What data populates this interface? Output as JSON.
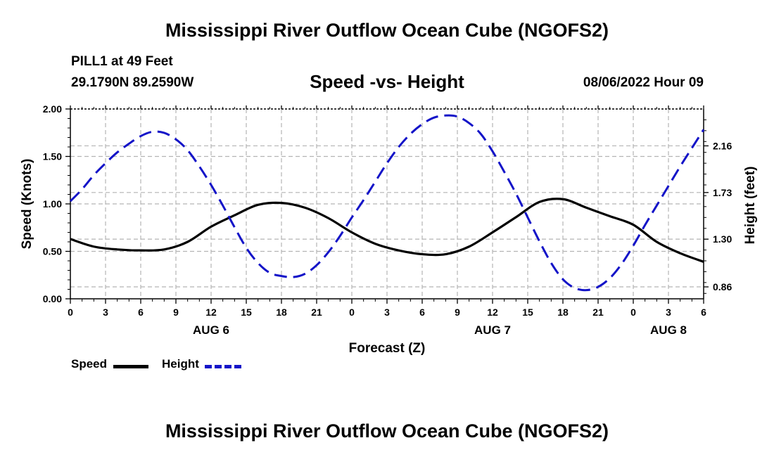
{
  "header": {
    "title": "Mississippi River Outflow Ocean Cube (NGOFS2)",
    "station": "PILL1 at 49 Feet",
    "coordinates": "29.1790N  89.2590W",
    "subtitle": "Speed -vs- Height",
    "datetime": "08/06/2022 Hour 09"
  },
  "footer": {
    "title": "Mississippi River Outflow Ocean Cube (NGOFS2)"
  },
  "legend": {
    "speed_label": "Speed",
    "height_label": "Height"
  },
  "colors": {
    "speed": "#000000",
    "height": "#1414c8",
    "grid": "#b4b4b4"
  },
  "chart_data": {
    "type": "line",
    "title": "Speed -vs- Height",
    "xlabel": "Forecast (Z)",
    "ylabel": "Speed (Knots)",
    "y2label": "Height (feet)",
    "xlim": [
      0,
      54
    ],
    "ylim": [
      0,
      2
    ],
    "y2lim": [
      0.75,
      2.5
    ],
    "x_ticks": [
      0,
      3,
      6,
      9,
      12,
      15,
      18,
      21,
      24,
      27,
      30,
      33,
      36,
      39,
      42,
      45,
      48,
      51,
      54
    ],
    "x_tick_labels": [
      "0",
      "3",
      "6",
      "9",
      "12",
      "15",
      "18",
      "21",
      "0",
      "3",
      "6",
      "9",
      "12",
      "15",
      "18",
      "21",
      "0",
      "3",
      "6"
    ],
    "y_ticks": [
      0,
      0.5,
      1,
      1.5,
      2
    ],
    "y_tick_labels": [
      "0.00",
      "0.50",
      "1.00",
      "1.50",
      "2.00"
    ],
    "y2_ticks": [
      0.86,
      1.3,
      1.73,
      2.16
    ],
    "y2_tick_labels": [
      "0.86",
      "1.30",
      "1.73",
      "2.16"
    ],
    "date_labels": [
      {
        "x": 12,
        "label": "AUG 6"
      },
      {
        "x": 36,
        "label": "AUG 7"
      },
      {
        "x": 51,
        "label": "AUG 8"
      }
    ],
    "grid": true,
    "series": [
      {
        "name": "Speed",
        "axis": "left",
        "style": "solid",
        "x": [
          0,
          2,
          4,
          6,
          8,
          10,
          12,
          14,
          16,
          18,
          20,
          22,
          24,
          26,
          28,
          30,
          32,
          34,
          36,
          38,
          40,
          42,
          44,
          46,
          48,
          50,
          52,
          54
        ],
        "values": [
          0.63,
          0.55,
          0.52,
          0.51,
          0.52,
          0.6,
          0.76,
          0.88,
          0.99,
          1.01,
          0.96,
          0.85,
          0.7,
          0.58,
          0.51,
          0.47,
          0.47,
          0.55,
          0.7,
          0.86,
          1.02,
          1.05,
          0.96,
          0.87,
          0.78,
          0.6,
          0.48,
          0.39
        ]
      },
      {
        "name": "Height",
        "axis": "right",
        "style": "dashed",
        "x": [
          0,
          1,
          2,
          3,
          4,
          5,
          6,
          7,
          8,
          9,
          10,
          11,
          12,
          13,
          14,
          15,
          16,
          17,
          18,
          19,
          20,
          21,
          22,
          23,
          24,
          25,
          26,
          27,
          28,
          29,
          30,
          31,
          32,
          33,
          34,
          35,
          36,
          37,
          38,
          39,
          40,
          41,
          42,
          43,
          44,
          45,
          46,
          47,
          48,
          49,
          50,
          51,
          52,
          53,
          54
        ],
        "values": [
          1.65,
          1.76,
          1.89,
          2.0,
          2.1,
          2.18,
          2.25,
          2.29,
          2.28,
          2.22,
          2.12,
          1.97,
          1.8,
          1.61,
          1.41,
          1.22,
          1.08,
          0.99,
          0.96,
          0.95,
          0.98,
          1.06,
          1.18,
          1.33,
          1.5,
          1.66,
          1.83,
          2.0,
          2.15,
          2.27,
          2.36,
          2.42,
          2.44,
          2.43,
          2.37,
          2.27,
          2.11,
          1.92,
          1.72,
          1.5,
          1.28,
          1.08,
          0.93,
          0.85,
          0.83,
          0.86,
          0.94,
          1.07,
          1.24,
          1.43,
          1.61,
          1.79,
          1.97,
          2.14,
          2.31
        ]
      }
    ]
  }
}
